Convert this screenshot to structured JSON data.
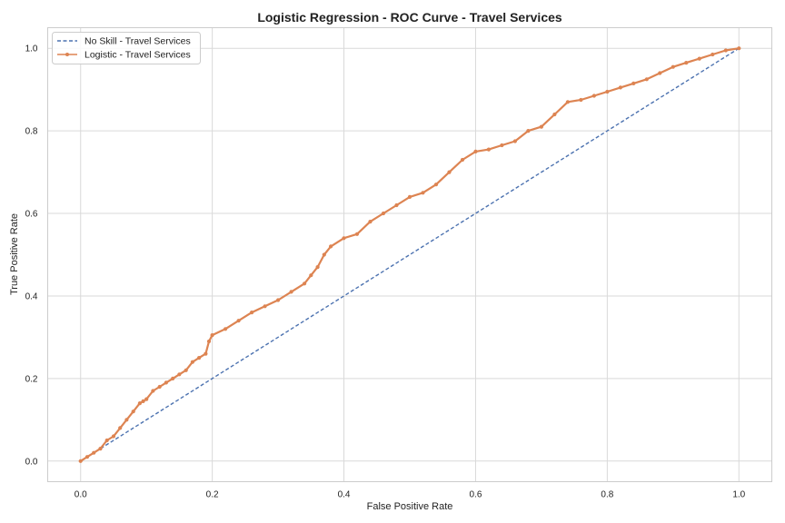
{
  "chart_data": {
    "type": "line",
    "title": "Logistic Regression - ROC Curve - Travel Services",
    "xlabel": "False Positive Rate",
    "ylabel": "True Positive Rate",
    "xlim": [
      -0.05,
      1.05
    ],
    "ylim": [
      -0.05,
      1.05
    ],
    "xticks": [
      "0.0",
      "0.2",
      "0.4",
      "0.6",
      "0.8",
      "1.0"
    ],
    "yticks": [
      "0.0",
      "0.2",
      "0.4",
      "0.6",
      "0.8",
      "1.0"
    ],
    "grid": true,
    "legend_position": "top-left",
    "series": [
      {
        "name": "No Skill - Travel Services",
        "style": "dashed",
        "color": "#4c72b0",
        "x": [
          0,
          1
        ],
        "y": [
          0,
          1
        ]
      },
      {
        "name": "Logistic - Travel Services",
        "style": "solid-marker",
        "color": "#dd8452",
        "x": [
          0.0,
          0.01,
          0.02,
          0.03,
          0.04,
          0.05,
          0.06,
          0.07,
          0.08,
          0.09,
          0.095,
          0.1,
          0.11,
          0.12,
          0.13,
          0.14,
          0.15,
          0.16,
          0.17,
          0.18,
          0.19,
          0.195,
          0.2,
          0.22,
          0.24,
          0.26,
          0.28,
          0.3,
          0.32,
          0.34,
          0.35,
          0.36,
          0.37,
          0.38,
          0.4,
          0.42,
          0.44,
          0.46,
          0.48,
          0.5,
          0.52,
          0.54,
          0.56,
          0.58,
          0.6,
          0.62,
          0.64,
          0.66,
          0.68,
          0.7,
          0.72,
          0.74,
          0.76,
          0.78,
          0.8,
          0.82,
          0.84,
          0.86,
          0.88,
          0.9,
          0.92,
          0.94,
          0.96,
          0.98,
          1.0
        ],
        "y": [
          0.0,
          0.01,
          0.02,
          0.03,
          0.05,
          0.06,
          0.08,
          0.1,
          0.12,
          0.14,
          0.145,
          0.15,
          0.17,
          0.18,
          0.19,
          0.2,
          0.21,
          0.22,
          0.24,
          0.25,
          0.26,
          0.29,
          0.305,
          0.32,
          0.34,
          0.36,
          0.375,
          0.39,
          0.41,
          0.43,
          0.45,
          0.47,
          0.5,
          0.52,
          0.54,
          0.55,
          0.58,
          0.6,
          0.62,
          0.64,
          0.65,
          0.67,
          0.7,
          0.73,
          0.75,
          0.755,
          0.765,
          0.775,
          0.8,
          0.81,
          0.84,
          0.87,
          0.875,
          0.885,
          0.895,
          0.905,
          0.915,
          0.925,
          0.94,
          0.955,
          0.965,
          0.975,
          0.985,
          0.995,
          1.0
        ]
      }
    ]
  }
}
